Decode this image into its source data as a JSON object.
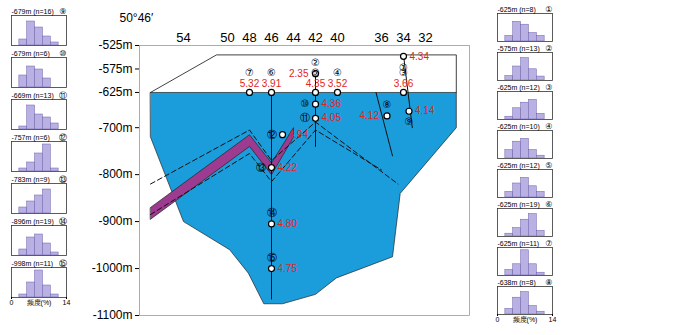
{
  "chart_data": [
    {
      "type": "section",
      "title": "50°46′",
      "xlim": [
        58,
        28
      ],
      "xticks": [
        54,
        50,
        48,
        46,
        44,
        42,
        40,
        36,
        34,
        32
      ],
      "ylim": [
        -1100,
        -525
      ],
      "yticks": [
        {
          "value": -525,
          "label": "-525m"
        },
        {
          "value": -575,
          "label": "-575m"
        },
        {
          "value": -625,
          "label": "-625m"
        },
        {
          "value": -700,
          "label": "-700m"
        },
        {
          "value": -800,
          "label": "-800m"
        },
        {
          "value": -900,
          "label": "-900m"
        },
        {
          "value": -1000,
          "label": "-1000m"
        },
        {
          "value": -1100,
          "label": "-1100m"
        }
      ],
      "orebody": {
        "color": "#1b9ddb",
        "x": [
          57,
          29.2,
          29.2,
          34.3,
          35,
          40.1,
          42,
          45,
          46.7,
          48.1,
          49.8,
          54,
          57
        ],
        "y": [
          -625,
          -625,
          -700,
          -840,
          -975,
          -1020,
          -1055,
          -1075,
          -1075,
          -1010,
          -960,
          -900,
          -720
        ]
      },
      "band": {
        "color": "#9c3b8f",
        "x": [
          57,
          48,
          46,
          44,
          44,
          46,
          48,
          57
        ],
        "y": [
          -870,
          -715,
          -775,
          -700,
          -720,
          -800,
          -740,
          -895
        ]
      },
      "dashed_lines": [
        {
          "line_style": "dashed",
          "x": [
            57,
            48,
            46,
            42,
            34.5
          ],
          "y": [
            -820,
            -705,
            -770,
            -688,
            -820
          ]
        },
        {
          "line_style": "dashed",
          "x": [
            57,
            48,
            46,
            42,
            36
          ],
          "y": [
            -885,
            -755,
            -815,
            -705,
            -790
          ]
        }
      ],
      "surface": {
        "x": [
          57,
          51,
          29.2,
          29.2
        ],
        "y": [
          -625,
          -545,
          -545,
          -625
        ]
      },
      "boreholes": [
        {
          "x": [
            46,
            46
          ],
          "y": [
            -625,
            -1065
          ]
        },
        {
          "x": [
            42,
            42
          ],
          "y": [
            -580,
            -740
          ]
        },
        {
          "x": [
            36.5,
            35
          ],
          "y": [
            -625,
            -760
          ]
        },
        {
          "x": [
            34,
            33.2
          ],
          "y": [
            -545,
            -700
          ]
        }
      ],
      "samples": {
        "color": "#e3241b",
        "ids": [
          "①",
          "②",
          "③",
          "④",
          "⑤",
          "⑥",
          "⑦",
          "⑧",
          "⑨",
          "⑩",
          "⑪",
          "⑫",
          "⑬",
          "⑭",
          "⑮"
        ],
        "x": [
          34,
          42,
          34,
          40,
          42,
          46,
          48,
          35.5,
          33.5,
          42,
          42,
          45,
          46,
          46,
          46
        ],
        "y": [
          -548,
          -585,
          -625,
          -625,
          -625,
          -625,
          -625,
          -675,
          -665,
          -650,
          -680,
          -715,
          -785,
          -905,
          -1000
        ],
        "values": [
          4.34,
          2.35,
          3.66,
          3.52,
          4.35,
          3.91,
          5.32,
          4.12,
          4.14,
          4.36,
          4.05,
          4.94,
          4.22,
          4.8,
          4.75
        ],
        "value_labels": [
          "4.34",
          "2.35",
          "3.66",
          "3.52",
          "4.35",
          "3.91",
          "5.32",
          "4.12",
          "4.14",
          "4.36",
          "4.05",
          "4.94",
          "4.22",
          "4.80",
          "4.75"
        ]
      },
      "data_labels": true
    },
    {
      "type": "histogram",
      "title": "-679m (n=16)",
      "annotations": [
        "⑨"
      ],
      "color": "#b9b0e3",
      "bins": [
        0,
        2,
        4,
        6,
        8,
        10,
        12,
        14
      ],
      "counts": [
        0,
        10,
        40,
        30,
        15,
        5,
        0
      ],
      "xlim": [
        0,
        14
      ],
      "ylim": [
        0,
        50
      ],
      "tick_labels": false
    },
    {
      "type": "histogram",
      "title": "-679m (n=6)",
      "annotations": [
        "⑩"
      ],
      "color": "#b9b0e3",
      "bins": [
        0,
        2,
        4,
        6,
        8,
        10,
        12,
        14
      ],
      "counts": [
        0,
        20,
        35,
        30,
        15,
        0,
        0
      ],
      "xlim": [
        0,
        14
      ],
      "ylim": [
        0,
        50
      ],
      "tick_labels": false
    },
    {
      "type": "histogram",
      "title": "-669m (n=13)",
      "annotations": [
        "⑪"
      ],
      "color": "#b9b0e3",
      "bins": [
        0,
        2,
        4,
        6,
        8,
        10,
        12,
        14
      ],
      "counts": [
        0,
        5,
        40,
        25,
        20,
        10,
        0
      ],
      "xlim": [
        0,
        14
      ],
      "ylim": [
        0,
        50
      ],
      "tick_labels": false
    },
    {
      "type": "histogram",
      "title": "-757m (n=6)",
      "annotations": [
        "⑫"
      ],
      "color": "#b9b0e3",
      "bins": [
        0,
        2,
        4,
        6,
        8,
        10,
        12,
        14
      ],
      "counts": [
        0,
        5,
        15,
        30,
        45,
        5,
        0
      ],
      "xlim": [
        0,
        14
      ],
      "ylim": [
        0,
        50
      ],
      "tick_labels": false
    },
    {
      "type": "histogram",
      "title": "-783m (n=9)",
      "annotations": [
        "⑬"
      ],
      "color": "#b9b0e3",
      "bins": [
        0,
        2,
        4,
        6,
        8,
        10,
        12,
        14
      ],
      "counts": [
        0,
        10,
        20,
        30,
        40,
        0,
        0
      ],
      "xlim": [
        0,
        14
      ],
      "ylim": [
        0,
        50
      ],
      "tick_labels": false
    },
    {
      "type": "histogram",
      "title": "-896m (n=19)",
      "annotations": [
        "⑭"
      ],
      "color": "#b9b0e3",
      "bins": [
        0,
        2,
        4,
        6,
        8,
        10,
        12,
        14
      ],
      "counts": [
        0,
        10,
        30,
        35,
        20,
        5,
        0
      ],
      "xlim": [
        0,
        14
      ],
      "ylim": [
        0,
        50
      ],
      "tick_labels": false
    },
    {
      "type": "histogram",
      "title": "-998m (n=11)",
      "annotations": [
        "⑮"
      ],
      "color": "#b9b0e3",
      "bins": [
        0,
        2,
        4,
        6,
        8,
        10,
        12,
        14
      ],
      "counts": [
        0,
        5,
        25,
        45,
        20,
        5,
        0
      ],
      "xlim": [
        0,
        14
      ],
      "ylim": [
        0,
        50
      ],
      "xticks": [
        0,
        14
      ],
      "x_label": "频度(%)",
      "tick_labels": "x"
    },
    {
      "type": "histogram",
      "title": "-625m (n=8)",
      "annotations": [
        "①"
      ],
      "color": "#b9b0e3",
      "bins": [
        0,
        2,
        4,
        6,
        8,
        10,
        12,
        14
      ],
      "counts": [
        0,
        10,
        35,
        30,
        15,
        10,
        0
      ],
      "xlim": [
        0,
        14
      ],
      "ylim": [
        0,
        50
      ],
      "tick_labels": false
    },
    {
      "type": "histogram",
      "title": "-575m (n=13)",
      "annotations": [
        "②"
      ],
      "color": "#b9b0e3",
      "bins": [
        0,
        2,
        4,
        6,
        8,
        10,
        12,
        14
      ],
      "counts": [
        0,
        8,
        25,
        40,
        20,
        7,
        0
      ],
      "xlim": [
        0,
        14
      ],
      "ylim": [
        0,
        50
      ],
      "tick_labels": false
    },
    {
      "type": "histogram",
      "title": "-625m (n=12)",
      "annotations": [
        "③"
      ],
      "color": "#b9b0e3",
      "bins": [
        0,
        2,
        4,
        6,
        8,
        10,
        12,
        14
      ],
      "counts": [
        0,
        5,
        20,
        30,
        35,
        10,
        0
      ],
      "xlim": [
        0,
        14
      ],
      "ylim": [
        0,
        50
      ],
      "tick_labels": false
    },
    {
      "type": "histogram",
      "title": "-625m (n=10)",
      "annotations": [
        "④"
      ],
      "color": "#b9b0e3",
      "bins": [
        0,
        2,
        4,
        6,
        8,
        10,
        12,
        14
      ],
      "counts": [
        0,
        15,
        30,
        35,
        15,
        5,
        0
      ],
      "xlim": [
        0,
        14
      ],
      "ylim": [
        0,
        50
      ],
      "tick_labels": false
    },
    {
      "type": "histogram",
      "title": "-625m (n=12)",
      "annotations": [
        "⑤"
      ],
      "color": "#b9b0e3",
      "bins": [
        0,
        2,
        4,
        6,
        8,
        10,
        12,
        14
      ],
      "counts": [
        0,
        10,
        25,
        35,
        20,
        10,
        0
      ],
      "xlim": [
        0,
        14
      ],
      "ylim": [
        0,
        50
      ],
      "tick_labels": false
    },
    {
      "type": "histogram",
      "title": "-625m (n=19)",
      "annotations": [
        "⑥"
      ],
      "color": "#b9b0e3",
      "bins": [
        0,
        2,
        4,
        6,
        8,
        10,
        12,
        14
      ],
      "counts": [
        0,
        5,
        15,
        30,
        40,
        10,
        0
      ],
      "xlim": [
        0,
        14
      ],
      "ylim": [
        0,
        50
      ],
      "tick_labels": false
    },
    {
      "type": "histogram",
      "title": "-625m (n=11)",
      "annotations": [
        "⑦"
      ],
      "color": "#b9b0e3",
      "bins": [
        0,
        2,
        4,
        6,
        8,
        10,
        12,
        14
      ],
      "counts": [
        0,
        10,
        20,
        45,
        20,
        5,
        0
      ],
      "xlim": [
        0,
        14
      ],
      "ylim": [
        0,
        50
      ],
      "tick_labels": false
    },
    {
      "type": "histogram",
      "title": "-638m (n=8)",
      "annotations": [
        "⑧"
      ],
      "color": "#b9b0e3",
      "bins": [
        0,
        2,
        4,
        6,
        8,
        10,
        12,
        14
      ],
      "counts": [
        0,
        10,
        30,
        40,
        15,
        5,
        0
      ],
      "xlim": [
        0,
        14
      ],
      "ylim": [
        0,
        50
      ],
      "xticks": [
        0,
        14
      ],
      "x_label": "频度(%)",
      "tick_labels": "x"
    }
  ]
}
